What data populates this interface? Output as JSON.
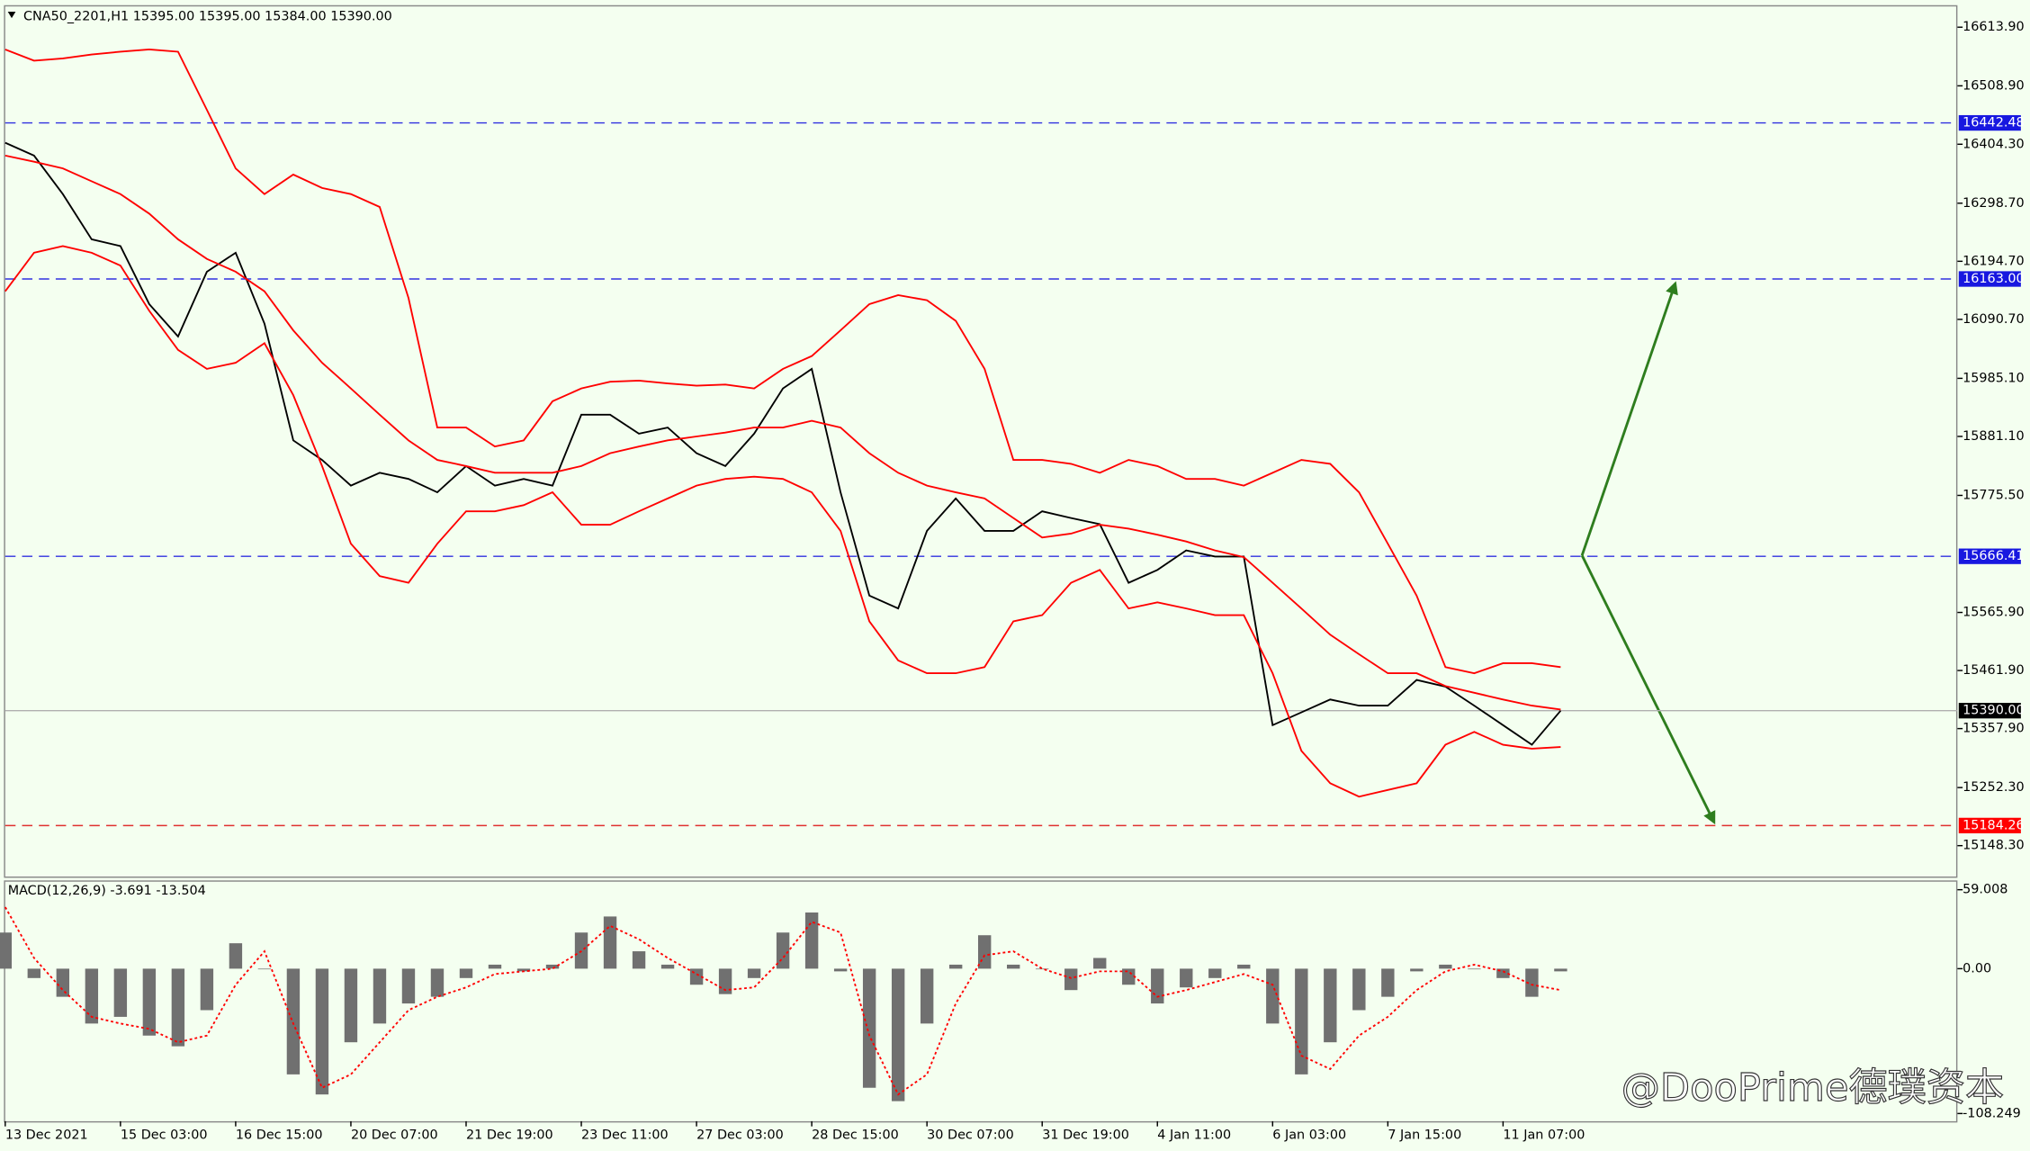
{
  "chart_data": [
    {
      "type": "line",
      "title": "CNA50_2201,H1  15395.00 15395.00 15384.00 15390.00",
      "categories": [
        "13 Dec 2021",
        null,
        null,
        null,
        "15 Dec 03:00",
        null,
        null,
        null,
        "16 Dec 15:00",
        null,
        null,
        null,
        "20 Dec 07:00",
        null,
        null,
        null,
        "21 Dec 19:00",
        null,
        null,
        null,
        "23 Dec 11:00",
        null,
        null,
        null,
        "27 Dec 03:00",
        null,
        null,
        null,
        "28 Dec 15:00",
        null,
        null,
        null,
        "30 Dec 07:00",
        null,
        null,
        null,
        "31 Dec 19:00",
        null,
        null,
        null,
        "4 Jan 11:00",
        null,
        null,
        null,
        "6 Jan 03:00",
        null,
        null,
        null,
        "7 Jan 15:00",
        null,
        null,
        null,
        "11 Jan 07:00",
        null,
        null
      ],
      "series": [
        {
          "color": "#000000",
          "values": [
            16407,
            16384,
            16315,
            16234,
            16222,
            16118,
            16060,
            16176,
            16210,
            16083,
            15874,
            15839,
            15793,
            15816,
            15805,
            15781,
            15828,
            15793,
            15805,
            15793,
            15920,
            15920,
            15886,
            15897,
            15851,
            15828,
            15886,
            15967,
            16002,
            15781,
            15596,
            15573,
            15712,
            15770,
            15712,
            15712,
            15747,
            15735,
            15724,
            15619,
            15642,
            15677,
            15666,
            15666,
            15364,
            15387,
            15410,
            15399,
            15399,
            15445,
            15433,
            15399,
            15364,
            15329,
            15390
          ]
        },
        {
          "color": "#ff0000",
          "values": [
            16574,
            16554,
            16558,
            16565,
            16570,
            16574,
            16570,
            16466,
            16361,
            16315,
            16350,
            16326,
            16315,
            16292,
            16129,
            15897,
            15897,
            15863,
            15874,
            15944,
            15967,
            15979,
            15981,
            15976,
            15972,
            15974,
            15967,
            16002,
            16025,
            16071,
            16118,
            16134,
            16125,
            16088,
            16002,
            15839,
            15839,
            15832,
            15816,
            15839,
            15828,
            15805,
            15805,
            15793,
            15816,
            15839,
            15832,
            15781,
            15689,
            15596,
            15468,
            15457,
            15475,
            15475,
            15468
          ]
        },
        {
          "color": "#ff0000",
          "values": [
            16384,
            16373,
            16361,
            16338,
            16315,
            16280,
            16234,
            16199,
            16176,
            16141,
            16071,
            16013,
            15967,
            15920,
            15874,
            15839,
            15828,
            15816,
            15816,
            15816,
            15828,
            15851,
            15863,
            15874,
            15881,
            15888,
            15897,
            15897,
            15909,
            15897,
            15851,
            15816,
            15793,
            15781,
            15770,
            15735,
            15700,
            15707,
            15723,
            15716,
            15705,
            15693,
            15677,
            15665,
            15619,
            15573,
            15526,
            15491,
            15457,
            15457,
            15434,
            15422,
            15410,
            15399,
            15392
          ]
        },
        {
          "color": "#ff0000",
          "values": [
            16141,
            16210,
            16222,
            16210,
            16187,
            16106,
            16036,
            16002,
            16013,
            16048,
            15955,
            15828,
            15689,
            15631,
            15619,
            15689,
            15747,
            15747,
            15758,
            15781,
            15723,
            15723,
            15747,
            15770,
            15793,
            15805,
            15809,
            15805,
            15781,
            15712,
            15550,
            15480,
            15457,
            15457,
            15468,
            15550,
            15561,
            15619,
            15642,
            15573,
            15584,
            15573,
            15561,
            15561,
            15457,
            15318,
            15260,
            15236,
            15248,
            15260,
            15329,
            15352,
            15329,
            15322,
            15325
          ]
        }
      ],
      "ylim": [
        15093,
        16651
      ],
      "yticks": [
        {
          "value": 16613.9,
          "label": "16613.90"
        },
        {
          "value": 16508.9,
          "label": "16508.90"
        },
        {
          "value": 16404.3,
          "label": "16404.30"
        },
        {
          "value": 16298.7,
          "label": "16298.70"
        },
        {
          "value": 16194.7,
          "label": "16194.70"
        },
        {
          "value": 16090.7,
          "label": "16090.70"
        },
        {
          "value": 15985.1,
          "label": "15985.10"
        },
        {
          "value": 15881.1,
          "label": "15881.10"
        },
        {
          "value": 15775.5,
          "label": "15775.50"
        },
        {
          "value": 15565.9,
          "label": "15565.90"
        },
        {
          "value": 15461.9,
          "label": "15461.90"
        },
        {
          "value": 15357.9,
          "label": "15357.90"
        },
        {
          "value": 15252.3,
          "label": "15252.30"
        },
        {
          "value": 15148.3,
          "label": "15148.30"
        }
      ],
      "levels": [
        {
          "value": 16442.48,
          "color": "#3030e0",
          "label_fill": "#1818e0"
        },
        {
          "value": 16163,
          "label": "16163.00",
          "color": "#3030e0",
          "label_fill": "#1818e0"
        },
        {
          "value": 15666.41,
          "color": "#3030e0",
          "label_fill": "#1818e0"
        },
        {
          "value": 15390,
          "label": "15390.00",
          "color": "#b0b0b0",
          "label_fill": "#000000"
        },
        {
          "value": 15184.26,
          "color": "#e03030",
          "label_fill": "#ff0000"
        }
      ],
      "grid": false
    },
    {
      "type": "bar",
      "title": "MACD(12,26,9) -3.691 -13.504",
      "series": [
        {
          "color": "#707070",
          "values": [
            27,
            -7,
            -21,
            -41,
            -36,
            -50,
            -58,
            -31,
            19,
            0,
            -79,
            -94,
            -55,
            -41,
            -26,
            -21,
            -7,
            3,
            -2,
            3,
            27,
            39,
            13,
            3,
            -12,
            -19,
            -7,
            27,
            42,
            -2,
            -89,
            -99,
            -41,
            3,
            25,
            3,
            0,
            -16,
            8,
            -12,
            -26,
            -14,
            -7,
            3,
            -41,
            -79,
            -55,
            -31,
            -21,
            -2,
            3,
            0,
            -7,
            -21,
            -2
          ]
        },
        {
          "type": "line",
          "style": "dotted",
          "color": "#ff0000",
          "values": [
            46,
            8,
            -16,
            -36,
            -41,
            -45,
            -55,
            -50,
            -12,
            13,
            -41,
            -89,
            -79,
            -55,
            -31,
            -21,
            -14,
            -4,
            -2,
            0,
            13,
            32,
            22,
            8,
            -4,
            -16,
            -14,
            8,
            35,
            27,
            -50,
            -94,
            -79,
            -26,
            10,
            13,
            0,
            -7,
            -2,
            -2,
            -21,
            -16,
            -10,
            -4,
            -12,
            -65,
            -75,
            -50,
            -36,
            -16,
            -2,
            3,
            -2,
            -12,
            -16
          ]
        }
      ],
      "ylim": [
        -114,
        65
      ],
      "yticks": [
        59.008,
        {
          "value": 0,
          "label": "0.00"
        },
        -108.249
      ],
      "grid": false
    }
  ],
  "watermark": "@DooPrime德璞资本"
}
